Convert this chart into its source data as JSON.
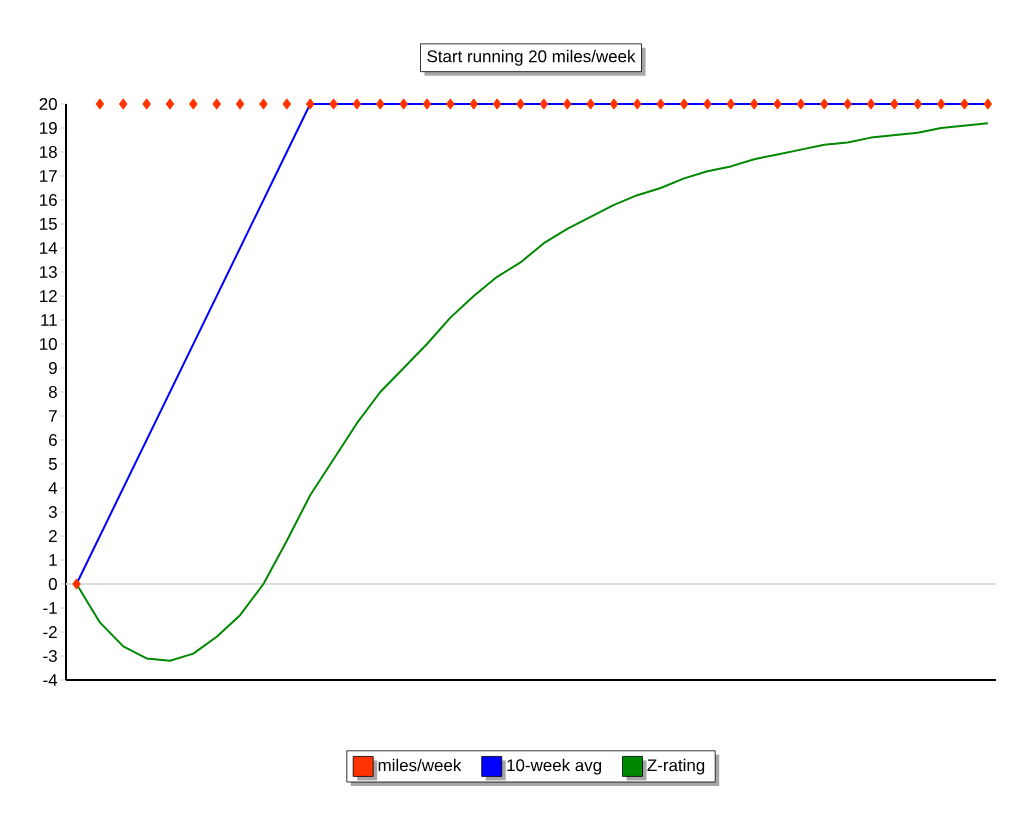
{
  "chart_data": {
    "type": "line",
    "title": "Start running 20 miles/week",
    "categories": [
      null,
      null,
      null,
      null,
      null,
      null,
      null,
      null,
      null,
      null,
      null,
      null,
      null,
      null,
      null,
      null,
      null,
      null,
      null,
      null,
      null,
      null,
      null,
      null,
      null,
      null,
      null,
      null,
      null,
      null,
      null,
      null,
      null,
      null,
      null,
      null,
      null,
      null,
      null,
      null
    ],
    "series": [
      {
        "name": "miles/week",
        "type": "scatter",
        "marker": "diamond",
        "color": "#ff3300",
        "values": [
          0,
          20,
          20,
          20,
          20,
          20,
          20,
          20,
          20,
          20,
          20,
          20,
          20,
          20,
          20,
          20,
          20,
          20,
          20,
          20,
          20,
          20,
          20,
          20,
          20,
          20,
          20,
          20,
          20,
          20,
          20,
          20,
          20,
          20,
          20,
          20,
          20,
          20,
          20,
          20
        ]
      },
      {
        "name": "10-week avg",
        "marker": "none",
        "color": "#0000ff",
        "values": [
          0,
          2,
          4,
          6,
          8,
          10,
          12,
          14,
          16,
          18,
          20,
          20,
          20,
          20,
          20,
          20,
          20,
          20,
          20,
          20,
          20,
          20,
          20,
          20,
          20,
          20,
          20,
          20,
          20,
          20,
          20,
          20,
          20,
          20,
          20,
          20,
          20,
          20,
          20,
          20
        ]
      },
      {
        "name": "Z-rating",
        "marker": "none",
        "color": "#008800",
        "values": [
          0,
          -1.6,
          -2.6,
          -3.1,
          -3.2,
          -2.9,
          -2.2,
          -1.3,
          0,
          1.8,
          3.7,
          5.2,
          6.7,
          8,
          9,
          10,
          11.1,
          12,
          12.8,
          13.4,
          14.2,
          14.8,
          15.3,
          15.8,
          16.2,
          16.5,
          16.9,
          17.2,
          17.4,
          17.7,
          17.9,
          18.1,
          18.3,
          18.4,
          18.6,
          18.7,
          18.8,
          19,
          19.1,
          19.2
        ]
      }
    ],
    "ylim": [
      -4,
      20
    ],
    "yticks": [
      -4,
      -3,
      -2,
      -1,
      0,
      1,
      2,
      3,
      4,
      5,
      6,
      7,
      8,
      9,
      10,
      11,
      12,
      13,
      14,
      15,
      16,
      17,
      18,
      19,
      20
    ],
    "tick_labels": "y",
    "ref_lines": [
      {
        "axis": "y",
        "value": 0,
        "color": "#dddddd"
      }
    ],
    "grid": false,
    "legend": "bottom"
  }
}
